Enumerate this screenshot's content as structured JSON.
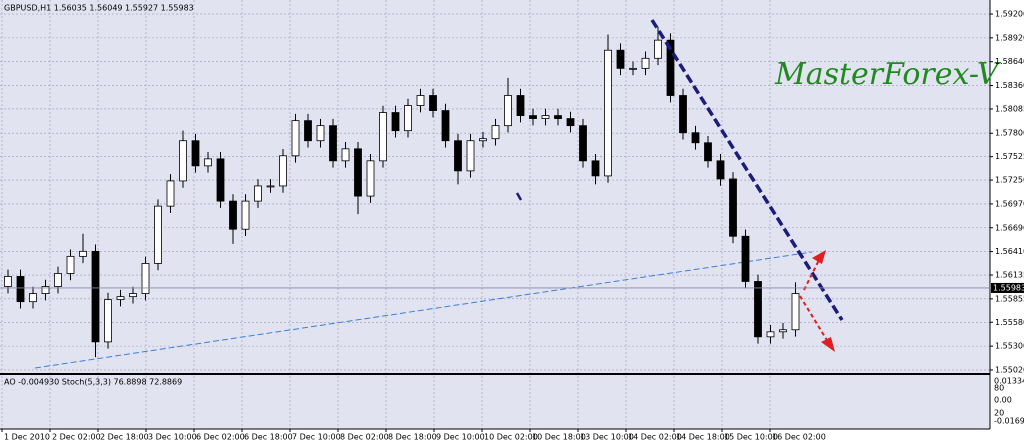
{
  "header": "GBPUSD,H1  1.56035 1.56049 1.55927 1.55983",
  "watermark": "MasterForex-V",
  "chart_data": {
    "type": "candlestick",
    "ylim": [
      1.54996,
      1.59306
    ],
    "yticks": [
      {
        "value": 1.592,
        "label": "1.59200"
      },
      {
        "value": 1.5892,
        "label": "1.58920"
      },
      {
        "value": 1.5864,
        "label": "1.58640"
      },
      {
        "value": 1.5836,
        "label": "1.58360"
      },
      1.58085,
      {
        "value": 1.578,
        "label": "1.57800"
      },
      1.57525,
      {
        "value": 1.5725,
        "label": "1.57250"
      },
      {
        "value": 1.5697,
        "label": "1.56970"
      },
      {
        "value": 1.5669,
        "label": "1.56690"
      },
      {
        "value": 1.5641,
        "label": "1.56410"
      },
      1.56135,
      1.55855,
      {
        "value": 1.5558,
        "label": "1.55580"
      },
      {
        "value": 1.553,
        "label": "1.55300"
      },
      {
        "value": 1.5502,
        "label": "1.55020"
      }
    ],
    "x_labels": [
      "1 Dec 2010",
      "2 Dec 02:00",
      "2 Dec 18:00",
      "3 Dec 10:00",
      "6 Dec 02:00",
      "6 Dec 18:00",
      "7 Dec 10:00",
      "8 Dec 02:00",
      "8 Dec 18:00",
      "9 Dec 10:00",
      "10 Dec 02:00",
      "10 Dec 18:00",
      "13 Dec 10:00",
      "14 Dec 02:00",
      "14 Dec 18:00",
      "15 Dec 10:00",
      "16 Dec 02:00"
    ],
    "current_price": 1.55983,
    "open": [
      1.56,
      1.56118,
      1.55822,
      1.55917,
      1.56,
      1.56153,
      1.56354,
      1.56413,
      1.5535,
      1.55846,
      1.55881,
      1.55917,
      1.56271,
      1.56944,
      1.5724,
      1.57712,
      1.57417,
      1.57499,
      1.57003,
      1.56673,
      1.57003,
      1.57181,
      1.57181,
      1.57535,
      1.57948,
      1.57712,
      1.57889,
      1.57476,
      1.57617,
      1.57062,
      1.57476,
      1.58043,
      1.5783,
      1.58125,
      1.58243,
      1.58066,
      1.57712,
      1.57358,
      1.57712,
      1.57736,
      1.57889,
      1.58243,
      1.58007,
      1.57972,
      1.58007,
      1.57972,
      1.57889,
      1.57476,
      1.57299,
      1.58775,
      1.58562,
      1.58562,
      1.5868,
      1.58893,
      1.58243,
      1.57806,
      1.57688,
      1.57476,
      1.57263,
      1.5659,
      1.56059,
      1.55409,
      1.55468,
      1.55492
    ],
    "high": [
      1.56198,
      1.56198,
      1.55997,
      1.5608,
      1.56233,
      1.56434,
      1.5662,
      1.56493,
      1.55926,
      1.55961,
      1.55997,
      1.56351,
      1.57024,
      1.5732,
      1.5783,
      1.57792,
      1.57579,
      1.57579,
      1.57083,
      1.57083,
      1.57261,
      1.57261,
      1.57615,
      1.58028,
      1.58028,
      1.57969,
      1.57969,
      1.57697,
      1.57697,
      1.57556,
      1.58123,
      1.58123,
      1.58205,
      1.58323,
      1.58323,
      1.58146,
      1.57792,
      1.57792,
      1.57816,
      1.57969,
      1.5845,
      1.58323,
      1.58087,
      1.58087,
      1.58087,
      1.58052,
      1.57969,
      1.57556,
      1.5896,
      1.58855,
      1.58642,
      1.5876,
      1.5905,
      1.58973,
      1.58323,
      1.57886,
      1.57768,
      1.57556,
      1.57343,
      1.5667,
      1.56139,
      1.55548,
      1.55572,
      1.5605
    ],
    "low": [
      1.5592,
      1.55742,
      1.55742,
      1.55837,
      1.5592,
      1.56073,
      1.56274,
      1.5517,
      1.5527,
      1.55766,
      1.55801,
      1.55837,
      1.56191,
      1.56864,
      1.5716,
      1.57337,
      1.57337,
      1.56923,
      1.565,
      1.56593,
      1.56923,
      1.57101,
      1.57101,
      1.57455,
      1.57632,
      1.57632,
      1.57396,
      1.57396,
      1.5685,
      1.56982,
      1.57396,
      1.5775,
      1.5775,
      1.58045,
      1.57986,
      1.57632,
      1.572,
      1.57278,
      1.57632,
      1.57656,
      1.57809,
      1.57927,
      1.57892,
      1.57892,
      1.57892,
      1.57809,
      1.57396,
      1.572,
      1.57219,
      1.58482,
      1.58482,
      1.58482,
      1.586,
      1.58163,
      1.57726,
      1.57608,
      1.57396,
      1.57183,
      1.5651,
      1.55979,
      1.55329,
      1.55329,
      1.55388,
      1.55412
    ],
    "close": [
      1.56118,
      1.55822,
      1.55917,
      1.56,
      1.56153,
      1.56354,
      1.56413,
      1.5535,
      1.55846,
      1.55881,
      1.55917,
      1.56271,
      1.56944,
      1.5724,
      1.57712,
      1.57417,
      1.57499,
      1.57003,
      1.56673,
      1.57003,
      1.57181,
      1.57181,
      1.57535,
      1.57948,
      1.57712,
      1.57889,
      1.57476,
      1.57617,
      1.57062,
      1.57476,
      1.58043,
      1.5783,
      1.58125,
      1.58243,
      1.58066,
      1.57712,
      1.57358,
      1.57712,
      1.57736,
      1.57889,
      1.58243,
      1.58007,
      1.57972,
      1.58007,
      1.57972,
      1.57889,
      1.57476,
      1.57299,
      1.58775,
      1.58562,
      1.58562,
      1.5868,
      1.58893,
      1.58243,
      1.57806,
      1.57688,
      1.57476,
      1.57263,
      1.5659,
      1.56059,
      1.55409,
      1.55468,
      1.55492,
      1.55917
    ]
  },
  "indicator": {
    "title": "AO -0.004930 Stoch(5,3,3) 76.8898 72.8869",
    "axis_labels": [
      "0.013346",
      "80",
      "0.00",
      "20",
      "-0.01694"
    ]
  }
}
